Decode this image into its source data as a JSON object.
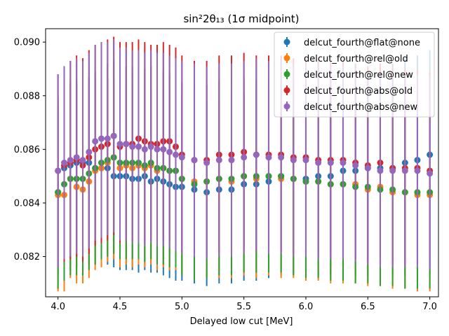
{
  "chart_data": {
    "type": "scatter",
    "title": "sin²2θ₁₃ (1σ midpoint)",
    "xlabel": "Delayed low cut [MeV]",
    "ylabel": "",
    "xlim": [
      3.9,
      7.07
    ],
    "ylim": [
      0.0805,
      0.0905
    ],
    "xticks": [
      "4.0",
      "4.5",
      "5.0",
      "5.5",
      "6.0",
      "6.5",
      "7.0"
    ],
    "yticks": [
      "0.082",
      "0.084",
      "0.086",
      "0.088",
      "0.090"
    ],
    "grid": false,
    "legend_position": "top-right",
    "series": [
      {
        "name": "delcut_fourth@flat@none",
        "color": "#1f77b4",
        "x": [
          4.0,
          4.05,
          4.1,
          4.15,
          4.2,
          4.25,
          4.3,
          4.35,
          4.4,
          4.45,
          4.5,
          4.55,
          4.6,
          4.65,
          4.7,
          4.75,
          4.8,
          4.85,
          4.9,
          4.95,
          5.0,
          5.1,
          5.2,
          5.3,
          5.4,
          5.5,
          5.6,
          5.7,
          5.8,
          5.9,
          6.0,
          6.1,
          6.2,
          6.3,
          6.4,
          6.5,
          6.6,
          6.7,
          6.8,
          6.9,
          7.0
        ],
        "y": [
          0.0844,
          0.0853,
          0.0854,
          0.0855,
          0.0855,
          0.0855,
          0.0853,
          0.0853,
          0.0853,
          0.085,
          0.085,
          0.085,
          0.0849,
          0.0849,
          0.085,
          0.0848,
          0.0849,
          0.0848,
          0.0847,
          0.0846,
          0.0846,
          0.0845,
          0.0844,
          0.0845,
          0.0845,
          0.0847,
          0.0847,
          0.0848,
          0.085,
          0.0849,
          0.0849,
          0.085,
          0.085,
          0.0852,
          0.0852,
          0.0853,
          0.0853,
          0.0853,
          0.0855,
          0.0856,
          0.0858
        ],
        "err_low": [
          0.0813,
          0.0813,
          0.0815,
          0.0816,
          0.0816,
          0.0817,
          0.0817,
          0.0817,
          0.0817,
          0.0816,
          0.0815,
          0.0815,
          0.0815,
          0.0814,
          0.0815,
          0.0814,
          0.0814,
          0.0813,
          0.0812,
          0.0811,
          0.0811,
          0.081,
          0.0809,
          0.081,
          0.081,
          0.0811,
          0.0811,
          0.0812,
          0.0813,
          0.0813,
          0.0813,
          0.0813,
          0.0813,
          0.0813,
          0.0813,
          0.0813,
          0.0813,
          0.0813,
          0.0813,
          0.0813,
          0.0813
        ],
        "err_high": [
          0.0876,
          0.0883,
          0.0884,
          0.0886,
          0.0886,
          0.0887,
          0.0886,
          0.0886,
          0.0886,
          0.0886,
          0.0885,
          0.0885,
          0.0884,
          0.0884,
          0.0884,
          0.0883,
          0.0883,
          0.0883,
          0.0883,
          0.0882,
          0.0881,
          0.0879,
          0.0878,
          0.0879,
          0.0879,
          0.0881,
          0.0882,
          0.0883,
          0.0884,
          0.0884,
          0.0884,
          0.0885,
          0.0886,
          0.0887,
          0.0888,
          0.0889,
          0.0891,
          0.0892,
          0.0894,
          0.0895,
          0.0897
        ]
      },
      {
        "name": "delcut_fourth@rel@old",
        "color": "#ff7f0e",
        "x": [
          4.0,
          4.05,
          4.1,
          4.15,
          4.2,
          4.25,
          4.3,
          4.35,
          4.4,
          4.45,
          4.5,
          4.55,
          4.6,
          4.65,
          4.7,
          4.75,
          4.8,
          4.85,
          4.9,
          4.95,
          5.0,
          5.1,
          5.2,
          5.3,
          5.4,
          5.5,
          5.6,
          5.7,
          5.8,
          5.9,
          6.0,
          6.1,
          6.2,
          6.3,
          6.4,
          6.5,
          6.6,
          6.7,
          6.8,
          6.9,
          7.0
        ],
        "y": [
          0.0843,
          0.0843,
          0.0849,
          0.0846,
          0.0845,
          0.0848,
          0.0852,
          0.0853,
          0.0855,
          0.0857,
          0.0853,
          0.0854,
          0.0853,
          0.0854,
          0.0853,
          0.0854,
          0.0852,
          0.0853,
          0.0852,
          0.0852,
          0.0849,
          0.0848,
          0.0848,
          0.0849,
          0.0848,
          0.085,
          0.0849,
          0.085,
          0.0849,
          0.0849,
          0.0848,
          0.0848,
          0.0847,
          0.0847,
          0.0847,
          0.0845,
          0.0846,
          0.0844,
          0.0844,
          0.0843,
          0.0843
        ],
        "err_low": [
          0.0807,
          0.0807,
          0.0812,
          0.081,
          0.081,
          0.0812,
          0.0815,
          0.0816,
          0.0818,
          0.0819,
          0.0816,
          0.0817,
          0.0816,
          0.0817,
          0.0816,
          0.0817,
          0.0815,
          0.0816,
          0.0815,
          0.0815,
          0.0813,
          0.0812,
          0.0812,
          0.0812,
          0.0812,
          0.0813,
          0.0812,
          0.0813,
          0.0812,
          0.0812,
          0.0811,
          0.0811,
          0.081,
          0.081,
          0.081,
          0.0809,
          0.0809,
          0.0808,
          0.0808,
          0.0807,
          0.0807
        ],
        "err_high": [
          0.0879,
          0.0879,
          0.0886,
          0.0882,
          0.088,
          0.0884,
          0.0889,
          0.089,
          0.0892,
          0.0894,
          0.089,
          0.0891,
          0.089,
          0.0891,
          0.089,
          0.0891,
          0.0889,
          0.089,
          0.0889,
          0.0889,
          0.0885,
          0.0884,
          0.0884,
          0.0886,
          0.0884,
          0.0887,
          0.0886,
          0.0887,
          0.0886,
          0.0886,
          0.0885,
          0.0885,
          0.0884,
          0.0884,
          0.0884,
          0.0881,
          0.0883,
          0.088,
          0.088,
          0.0879,
          0.0879
        ]
      },
      {
        "name": "delcut_fourth@rel@new",
        "color": "#2ca02c",
        "x": [
          4.0,
          4.05,
          4.1,
          4.15,
          4.2,
          4.25,
          4.3,
          4.35,
          4.4,
          4.45,
          4.5,
          4.55,
          4.6,
          4.65,
          4.7,
          4.75,
          4.8,
          4.85,
          4.9,
          4.95,
          5.0,
          5.1,
          5.2,
          5.3,
          5.4,
          5.5,
          5.6,
          5.7,
          5.8,
          5.9,
          6.0,
          6.1,
          6.2,
          6.3,
          6.4,
          6.5,
          6.6,
          6.7,
          6.8,
          6.9,
          7.0
        ],
        "y": [
          0.0844,
          0.0847,
          0.0849,
          0.0849,
          0.0849,
          0.0851,
          0.0853,
          0.0855,
          0.0856,
          0.0857,
          0.0855,
          0.0855,
          0.0855,
          0.0855,
          0.0854,
          0.0855,
          0.0853,
          0.0853,
          0.0852,
          0.0852,
          0.0849,
          0.0847,
          0.0848,
          0.0849,
          0.0849,
          0.085,
          0.085,
          0.085,
          0.085,
          0.0849,
          0.0848,
          0.0848,
          0.0847,
          0.0847,
          0.0846,
          0.0846,
          0.0845,
          0.0845,
          0.0844,
          0.0844,
          0.0844
        ],
        "err_low": [
          0.0808,
          0.0811,
          0.0813,
          0.0813,
          0.0813,
          0.0815,
          0.0817,
          0.0819,
          0.082,
          0.0821,
          0.0819,
          0.0819,
          0.0819,
          0.0819,
          0.0818,
          0.0819,
          0.0817,
          0.0817,
          0.0816,
          0.0816,
          0.0813,
          0.0811,
          0.0812,
          0.0813,
          0.0813,
          0.0814,
          0.0814,
          0.0814,
          0.0814,
          0.0813,
          0.0812,
          0.0812,
          0.0811,
          0.0811,
          0.081,
          0.081,
          0.0809,
          0.0809,
          0.0808,
          0.0808,
          0.0808
        ],
        "err_high": [
          0.088,
          0.0883,
          0.0885,
          0.0885,
          0.0885,
          0.0887,
          0.0889,
          0.0891,
          0.0892,
          0.0893,
          0.0891,
          0.0891,
          0.0891,
          0.0891,
          0.089,
          0.0891,
          0.0889,
          0.0889,
          0.0888,
          0.0888,
          0.0885,
          0.0883,
          0.0884,
          0.0885,
          0.0885,
          0.0886,
          0.0886,
          0.0886,
          0.0886,
          0.0885,
          0.0884,
          0.0884,
          0.0883,
          0.0883,
          0.0882,
          0.0882,
          0.0881,
          0.0881,
          0.088,
          0.088,
          0.088
        ]
      },
      {
        "name": "delcut_fourth@abs@old",
        "color": "#d62728",
        "x": [
          4.0,
          4.05,
          4.1,
          4.15,
          4.2,
          4.25,
          4.3,
          4.35,
          4.4,
          4.45,
          4.5,
          4.55,
          4.6,
          4.65,
          4.7,
          4.75,
          4.8,
          4.85,
          4.9,
          4.95,
          5.0,
          5.1,
          5.2,
          5.3,
          5.4,
          5.5,
          5.6,
          5.7,
          5.8,
          5.9,
          6.0,
          6.1,
          6.2,
          6.3,
          6.4,
          6.5,
          6.6,
          6.7,
          6.8,
          6.9,
          7.0
        ],
        "y": [
          0.0852,
          0.0854,
          0.0855,
          0.0856,
          0.0854,
          0.0857,
          0.086,
          0.0861,
          0.0862,
          0.0865,
          0.0861,
          0.0862,
          0.0862,
          0.0864,
          0.0863,
          0.0862,
          0.0862,
          0.0863,
          0.0863,
          0.0861,
          0.0858,
          0.0856,
          0.0856,
          0.0858,
          0.0858,
          0.0859,
          0.0858,
          0.0858,
          0.0858,
          0.0857,
          0.0857,
          0.0856,
          0.0856,
          0.0856,
          0.0855,
          0.0854,
          0.0855,
          0.0853,
          0.0853,
          0.0853,
          0.0852
        ],
        "err_low": [
          0.0816,
          0.0818,
          0.0819,
          0.082,
          0.0818,
          0.0821,
          0.0824,
          0.0825,
          0.0826,
          0.0828,
          0.0825,
          0.0826,
          0.0826,
          0.0827,
          0.0826,
          0.0826,
          0.0826,
          0.0826,
          0.0826,
          0.0825,
          0.0822,
          0.082,
          0.082,
          0.0822,
          0.0822,
          0.0823,
          0.0822,
          0.0822,
          0.0822,
          0.0821,
          0.0821,
          0.082,
          0.082,
          0.082,
          0.0819,
          0.0818,
          0.0819,
          0.0817,
          0.0817,
          0.0817,
          0.0816
        ],
        "err_high": [
          0.0888,
          0.0891,
          0.0893,
          0.0895,
          0.0894,
          0.0897,
          0.0899,
          0.09,
          0.0901,
          0.0902,
          0.09,
          0.09,
          0.09,
          0.0901,
          0.09,
          0.0899,
          0.0899,
          0.09,
          0.0899,
          0.0898,
          0.0895,
          0.0893,
          0.0893,
          0.0895,
          0.0895,
          0.0896,
          0.0895,
          0.0895,
          0.0895,
          0.0894,
          0.0894,
          0.0893,
          0.0893,
          0.0893,
          0.0892,
          0.0891,
          0.0892,
          0.089,
          0.089,
          0.089,
          0.0889
        ]
      },
      {
        "name": "delcut_fourth@abs@new",
        "color": "#9467bd",
        "x": [
          4.0,
          4.05,
          4.1,
          4.15,
          4.2,
          4.25,
          4.3,
          4.35,
          4.4,
          4.45,
          4.5,
          4.55,
          4.6,
          4.65,
          4.7,
          4.75,
          4.8,
          4.85,
          4.9,
          4.95,
          5.0,
          5.1,
          5.2,
          5.3,
          5.4,
          5.5,
          5.6,
          5.7,
          5.8,
          5.9,
          6.0,
          6.1,
          6.2,
          6.3,
          6.4,
          6.5,
          6.6,
          6.7,
          6.8,
          6.9,
          7.0
        ],
        "y": [
          0.0852,
          0.0855,
          0.0856,
          0.0857,
          0.0856,
          0.0859,
          0.0863,
          0.0864,
          0.0864,
          0.0865,
          0.0862,
          0.0862,
          0.0861,
          0.0861,
          0.086,
          0.0861,
          0.086,
          0.086,
          0.0859,
          0.0858,
          0.0857,
          0.0856,
          0.0855,
          0.0856,
          0.0856,
          0.0857,
          0.0858,
          0.0857,
          0.0857,
          0.0856,
          0.0856,
          0.0855,
          0.0855,
          0.0855,
          0.0854,
          0.0853,
          0.0852,
          0.0852,
          0.0852,
          0.0852,
          0.0851
        ],
        "err_low": [
          0.0816,
          0.0819,
          0.082,
          0.0821,
          0.082,
          0.0823,
          0.0826,
          0.0827,
          0.0828,
          0.0829,
          0.0826,
          0.0826,
          0.0825,
          0.0825,
          0.0824,
          0.0825,
          0.0824,
          0.0824,
          0.0823,
          0.0822,
          0.0821,
          0.082,
          0.0819,
          0.082,
          0.082,
          0.0821,
          0.0822,
          0.0821,
          0.0821,
          0.082,
          0.082,
          0.0819,
          0.0819,
          0.0819,
          0.0818,
          0.0817,
          0.0816,
          0.0816,
          0.0816,
          0.0816,
          0.0815
        ],
        "err_high": [
          0.0888,
          0.0891,
          0.0893,
          0.0894,
          0.0893,
          0.0896,
          0.0899,
          0.09,
          0.09,
          0.0901,
          0.0898,
          0.0898,
          0.0897,
          0.0897,
          0.0896,
          0.0897,
          0.0896,
          0.0896,
          0.0895,
          0.0894,
          0.0893,
          0.0892,
          0.0891,
          0.0892,
          0.0892,
          0.0893,
          0.0894,
          0.0893,
          0.0893,
          0.0892,
          0.0892,
          0.0891,
          0.0891,
          0.0891,
          0.089,
          0.0889,
          0.0888,
          0.0888,
          0.0888,
          0.0888,
          0.0887
        ]
      }
    ]
  }
}
